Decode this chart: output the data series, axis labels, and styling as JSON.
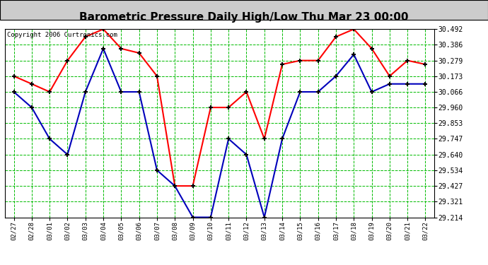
{
  "title": "Barometric Pressure Daily High/Low Thu Mar 23 00:00",
  "copyright": "Copyright 2006 Curtronics.com",
  "dates": [
    "02/27",
    "02/28",
    "03/01",
    "03/02",
    "03/03",
    "03/04",
    "03/05",
    "03/06",
    "03/07",
    "03/08",
    "03/09",
    "03/10",
    "03/11",
    "03/12",
    "03/13",
    "03/14",
    "03/15",
    "03/16",
    "03/17",
    "03/18",
    "03/19",
    "03/20",
    "03/21",
    "03/22"
  ],
  "high_values": [
    30.173,
    30.12,
    30.066,
    30.279,
    30.44,
    30.492,
    30.36,
    30.33,
    30.173,
    29.427,
    29.427,
    29.96,
    29.96,
    30.066,
    29.747,
    30.253,
    30.279,
    30.279,
    30.44,
    30.492,
    30.36,
    30.173,
    30.279,
    30.253
  ],
  "low_values": [
    30.066,
    29.96,
    29.747,
    29.64,
    30.066,
    30.36,
    30.066,
    30.066,
    29.534,
    29.427,
    29.214,
    29.214,
    29.747,
    29.64,
    29.214,
    29.747,
    30.066,
    30.066,
    30.173,
    30.32,
    30.066,
    30.12,
    30.12,
    30.12
  ],
  "ylim_min": 29.214,
  "ylim_max": 30.492,
  "yticks": [
    30.492,
    30.386,
    30.279,
    30.173,
    30.066,
    29.96,
    29.853,
    29.747,
    29.64,
    29.534,
    29.427,
    29.321,
    29.214
  ],
  "high_color": "#ff0000",
  "low_color": "#0000bb",
  "grid_color": "#00bb00",
  "bg_color": "#ffffff",
  "title_bg": "#dddddd",
  "marker_color": "#000000",
  "linewidth": 1.5,
  "marker_size": 3.5
}
